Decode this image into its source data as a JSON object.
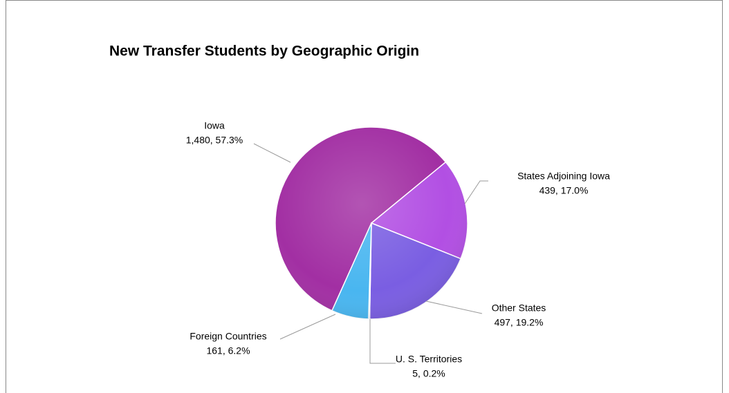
{
  "chart_data": {
    "type": "pie",
    "title": "New Transfer Students by Geographic Origin",
    "categories": [
      "Iowa",
      "States Adjoining Iowa",
      "Other States",
      "U. S. Territories",
      "Foreign Countries"
    ],
    "values": [
      1480,
      439,
      497,
      5,
      161
    ],
    "value_labels": [
      "1,480, 57.3%",
      "439, 17.0%",
      "497, 19.2%",
      "5, 0.2%",
      "161, 6.2%"
    ],
    "colors": [
      "#a22fa3",
      "#b24fe3",
      "#7a5ee2",
      "#4b6fe0",
      "#49b6f0"
    ]
  }
}
